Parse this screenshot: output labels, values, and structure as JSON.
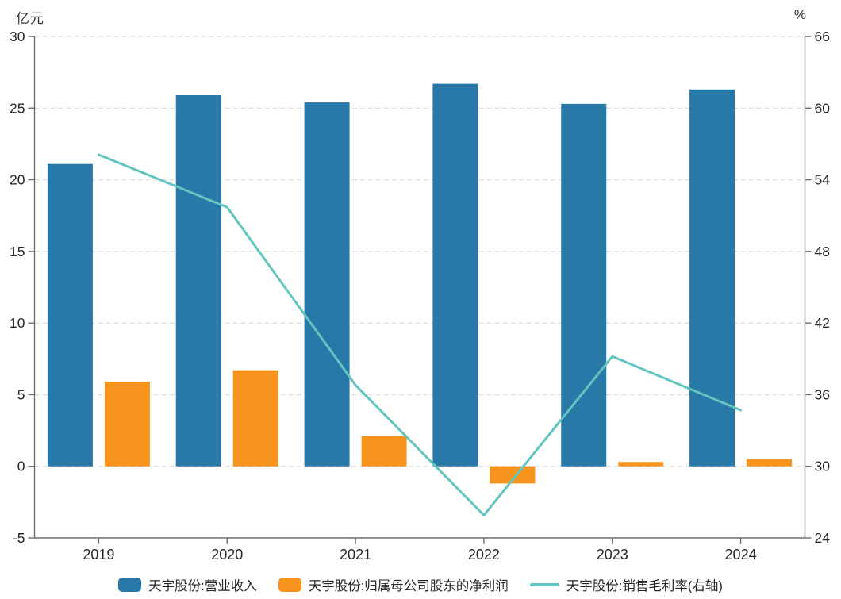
{
  "chart_data": {
    "type": "bar",
    "subtype": "combo-bar-line",
    "categories": [
      "2019",
      "2020",
      "2021",
      "2022",
      "2023",
      "2024"
    ],
    "series": [
      {
        "name": "天宇股份:营业收入",
        "type": "bar",
        "axis": "left",
        "color": "#2878a8",
        "values": [
          21.1,
          25.9,
          25.4,
          26.7,
          25.3,
          26.3
        ]
      },
      {
        "name": "天宇股份:归属母公司股东的净利润",
        "type": "bar",
        "axis": "left",
        "color": "#f7941e",
        "values": [
          5.9,
          6.7,
          2.1,
          -1.2,
          0.3,
          0.5
        ]
      },
      {
        "name": "天宇股份:销售毛利率(右轴)",
        "type": "line",
        "axis": "right",
        "color": "#62c5bf",
        "values": [
          56.1,
          51.7,
          36.8,
          25.9,
          39.2,
          34.7
        ]
      }
    ],
    "left_axis": {
      "unit": "亿元",
      "min": -5,
      "max": 30,
      "step": 5,
      "ticks": [
        "30",
        "25",
        "20",
        "15",
        "10",
        "5",
        "0",
        "-5"
      ]
    },
    "right_axis": {
      "unit": "%",
      "min": 24,
      "max": 66,
      "step": 6,
      "ticks": [
        "66",
        "60",
        "54",
        "48",
        "42",
        "36",
        "30",
        "24"
      ]
    },
    "grid": "dashed horizontal gridlines at every tick, on",
    "legend_position": "bottom",
    "title": "",
    "xlabel": "",
    "ylabel_left": "亿元",
    "ylabel_right": "%",
    "colors": {
      "axis_line": "#6e6e6e",
      "grid_line": "#dcdcdc",
      "tick_text": "#262626",
      "background": "#ffffff"
    }
  }
}
